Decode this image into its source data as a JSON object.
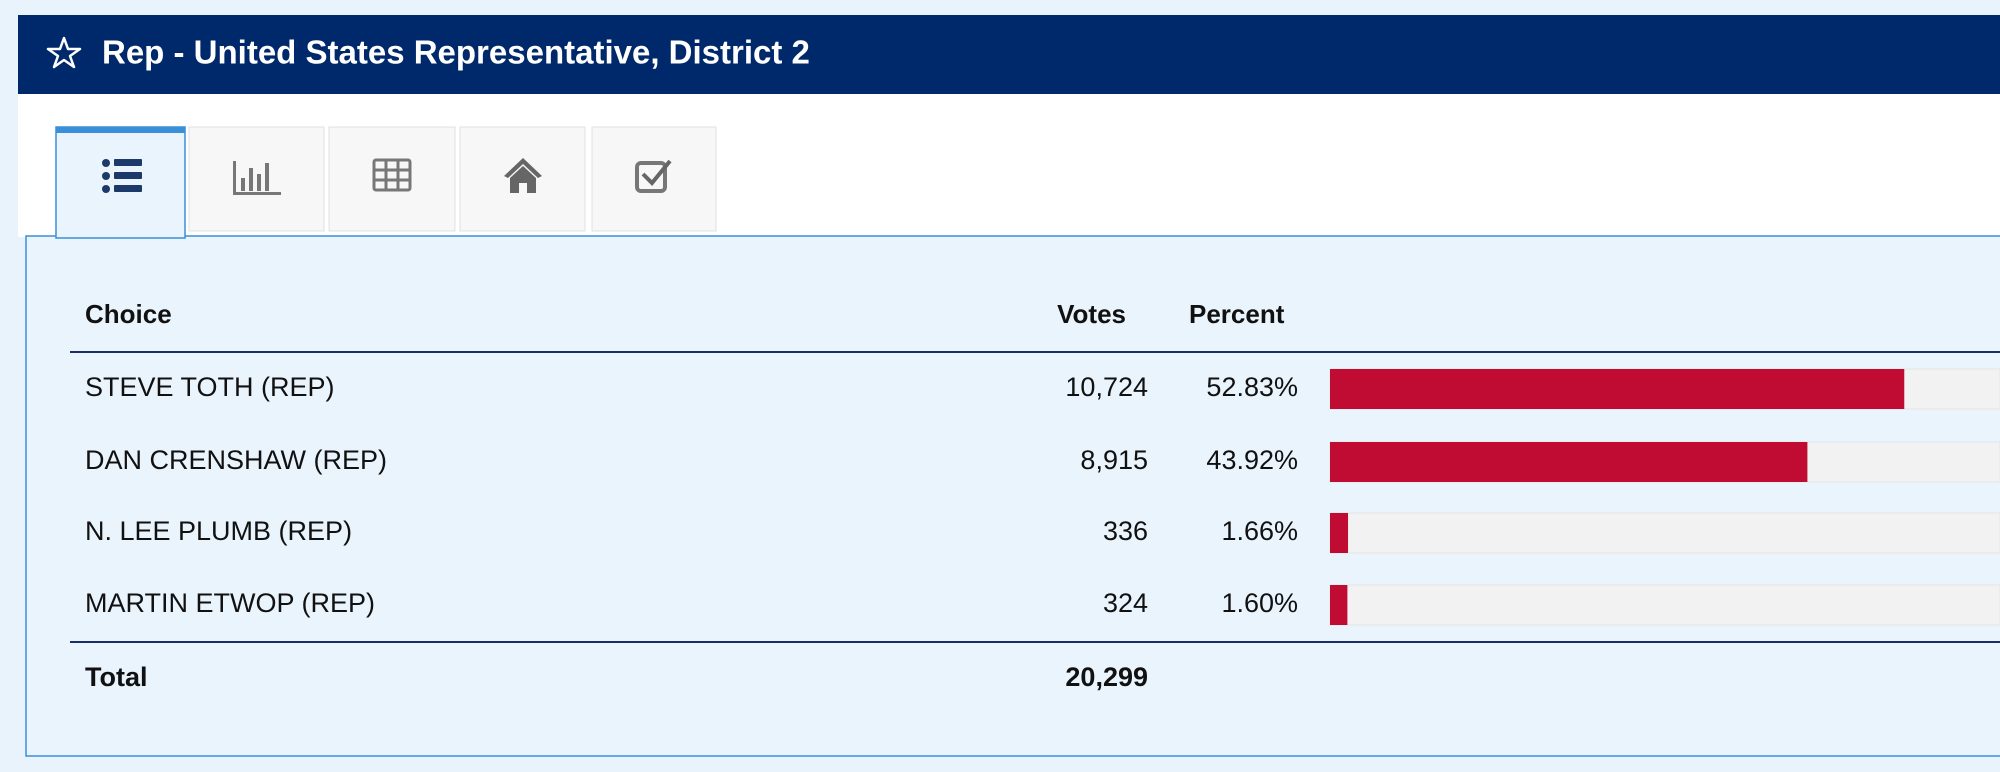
{
  "header": {
    "title": "Rep - United States Representative, District 2"
  },
  "table": {
    "columns": [
      "Choice",
      "Votes",
      "Percent"
    ],
    "bar_xlim": [
      0,
      100
    ],
    "rows": [
      {
        "choice": "STEVE TOTH (REP)",
        "votes": "10,724",
        "percent": {
          "value": 52.83,
          "label": "52.83%"
        }
      },
      {
        "choice": "DAN CRENSHAW (REP)",
        "votes": "8,915",
        "percent": {
          "value": 43.92,
          "label": "43.92%"
        }
      },
      {
        "choice": "N. LEE PLUMB (REP)",
        "votes": "336",
        "percent": {
          "value": 1.66,
          "label": "1.66%"
        }
      },
      {
        "choice": "MARTIN ETWOP (REP)",
        "votes": "324",
        "percent": {
          "value": 1.6,
          "label": "1.60%"
        }
      }
    ],
    "total": {
      "label": "Total",
      "votes": "20,299"
    }
  }
}
